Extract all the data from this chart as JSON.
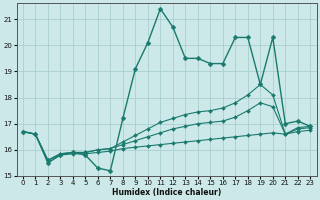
{
  "xlabel": "Humidex (Indice chaleur)",
  "ylabel": "",
  "background_color": "#cce8e8",
  "grid_color": "#aacfcf",
  "line_color": "#1a7a6e",
  "xlim": [
    -0.5,
    23.5
  ],
  "ylim": [
    15,
    21.6
  ],
  "xticks": [
    0,
    1,
    2,
    3,
    4,
    5,
    6,
    7,
    8,
    9,
    10,
    11,
    12,
    13,
    14,
    15,
    16,
    17,
    18,
    19,
    20,
    21,
    22,
    23
  ],
  "yticks": [
    15,
    16,
    17,
    18,
    19,
    20,
    21
  ],
  "lines": [
    {
      "x": [
        0,
        1,
        2,
        3,
        4,
        5,
        6,
        7,
        8,
        9,
        10,
        11,
        12,
        13,
        14,
        15,
        16,
        17,
        18,
        19,
        20,
        21,
        22,
        23
      ],
      "y": [
        16.7,
        16.6,
        15.5,
        15.8,
        15.9,
        15.8,
        15.3,
        15.2,
        17.2,
        19.1,
        20.1,
        21.4,
        20.7,
        19.5,
        19.5,
        19.3,
        19.3,
        20.3,
        20.3,
        18.5,
        20.3,
        17.0,
        17.1,
        16.9
      ],
      "marker": "D",
      "markersize": 2.5,
      "linewidth": 1.0
    },
    {
      "x": [
        0,
        1,
        2,
        3,
        4,
        5,
        6,
        7,
        8,
        9,
        10,
        11,
        12,
        13,
        14,
        15,
        16,
        17,
        18,
        19,
        20,
        21,
        22,
        23
      ],
      "y": [
        16.7,
        16.6,
        15.6,
        15.8,
        15.85,
        15.85,
        15.9,
        15.95,
        16.05,
        16.1,
        16.15,
        16.2,
        16.25,
        16.3,
        16.35,
        16.4,
        16.45,
        16.5,
        16.55,
        16.6,
        16.65,
        16.6,
        16.7,
        16.75
      ],
      "marker": "D",
      "markersize": 2.0,
      "linewidth": 0.8
    },
    {
      "x": [
        0,
        1,
        2,
        3,
        4,
        5,
        6,
        7,
        8,
        9,
        10,
        11,
        12,
        13,
        14,
        15,
        16,
        17,
        18,
        19,
        20,
        21,
        22,
        23
      ],
      "y": [
        16.7,
        16.6,
        15.6,
        15.85,
        15.9,
        15.9,
        16.0,
        16.05,
        16.2,
        16.35,
        16.5,
        16.65,
        16.8,
        16.9,
        17.0,
        17.05,
        17.1,
        17.25,
        17.5,
        17.8,
        17.65,
        16.6,
        16.8,
        16.85
      ],
      "marker": "D",
      "markersize": 2.0,
      "linewidth": 0.8
    },
    {
      "x": [
        0,
        1,
        2,
        3,
        4,
        5,
        6,
        7,
        8,
        9,
        10,
        11,
        12,
        13,
        14,
        15,
        16,
        17,
        18,
        19,
        20,
        21,
        22,
        23
      ],
      "y": [
        16.7,
        16.6,
        15.6,
        15.85,
        15.9,
        15.9,
        16.0,
        16.05,
        16.3,
        16.55,
        16.8,
        17.05,
        17.2,
        17.35,
        17.45,
        17.5,
        17.6,
        17.8,
        18.1,
        18.5,
        18.1,
        16.6,
        16.85,
        16.9
      ],
      "marker": "D",
      "markersize": 2.0,
      "linewidth": 0.8
    }
  ]
}
